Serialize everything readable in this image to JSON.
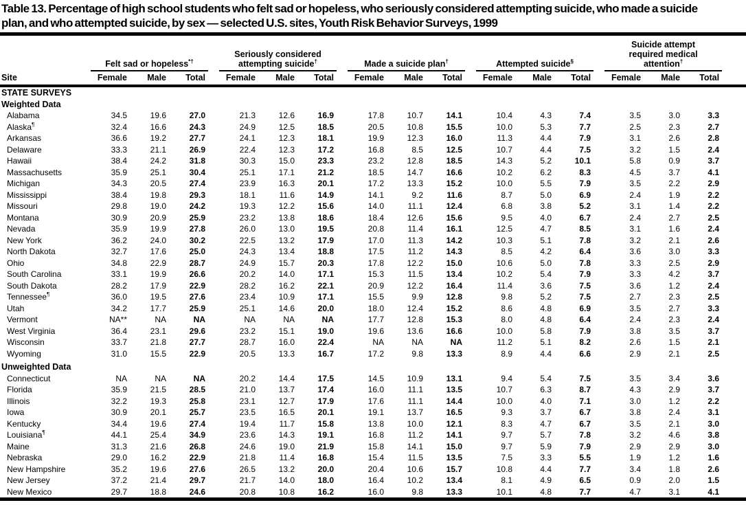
{
  "title": "Table 13. Percentage of high school students who felt sad or hopeless, who seriously considered attempting suicide, who made a suicide plan, and who attempted suicide, by sex — selected U.S. sites, Youth Risk Behavior Surveys, 1999",
  "table": {
    "site_header": "Site",
    "sub_headers": [
      "Female",
      "Male",
      "Total"
    ],
    "groups": [
      {
        "label": "Felt sad or hopeless",
        "marker": "*†"
      },
      {
        "label": "Seriously considered attempting suicide",
        "marker": "†"
      },
      {
        "label": "Made a suicide plan",
        "marker": "†"
      },
      {
        "label": "Attempted suicide",
        "marker": "§"
      },
      {
        "label": "Suicide attempt required medical attention",
        "marker": "†"
      }
    ],
    "rows": [
      {
        "type": "section",
        "label": "STATE SURVEYS"
      },
      {
        "type": "section",
        "label": "Weighted Data"
      },
      {
        "type": "data",
        "site": "Alabama",
        "marker": "",
        "values": [
          "34.5",
          "19.6",
          "27.0",
          "21.3",
          "12.6",
          "16.9",
          "17.8",
          "10.7",
          "14.1",
          "10.4",
          "4.3",
          "7.4",
          "3.5",
          "3.0",
          "3.3"
        ]
      },
      {
        "type": "data",
        "site": "Alaska",
        "marker": "¶",
        "values": [
          "32.4",
          "16.6",
          "24.3",
          "24.9",
          "12.5",
          "18.5",
          "20.5",
          "10.8",
          "15.5",
          "10.0",
          "5.3",
          "7.7",
          "2.5",
          "2.3",
          "2.7"
        ]
      },
      {
        "type": "data",
        "site": "Arkansas",
        "marker": "",
        "values": [
          "36.6",
          "19.2",
          "27.7",
          "24.1",
          "12.3",
          "18.1",
          "19.9",
          "12.3",
          "16.0",
          "11.3",
          "4.4",
          "7.9",
          "3.1",
          "2.6",
          "2.8"
        ]
      },
      {
        "type": "data",
        "site": "Delaware",
        "marker": "",
        "values": [
          "33.3",
          "21.1",
          "26.9",
          "22.4",
          "12.3",
          "17.2",
          "16.8",
          "8.5",
          "12.5",
          "10.7",
          "4.4",
          "7.5",
          "3.2",
          "1.5",
          "2.4"
        ]
      },
      {
        "type": "data",
        "site": "Hawaii",
        "marker": "",
        "values": [
          "38.4",
          "24.2",
          "31.8",
          "30.3",
          "15.0",
          "23.3",
          "23.2",
          "12.8",
          "18.5",
          "14.3",
          "5.2",
          "10.1",
          "5.8",
          "0.9",
          "3.7"
        ]
      },
      {
        "type": "data",
        "site": "Massachusetts",
        "marker": "",
        "values": [
          "35.9",
          "25.1",
          "30.4",
          "25.1",
          "17.1",
          "21.2",
          "18.5",
          "14.7",
          "16.6",
          "10.2",
          "6.2",
          "8.3",
          "4.5",
          "3.7",
          "4.1"
        ]
      },
      {
        "type": "data",
        "site": "Michigan",
        "marker": "",
        "values": [
          "34.3",
          "20.5",
          "27.4",
          "23.9",
          "16.3",
          "20.1",
          "17.2",
          "13.3",
          "15.2",
          "10.0",
          "5.5",
          "7.9",
          "3.5",
          "2.2",
          "2.9"
        ]
      },
      {
        "type": "data",
        "site": "Mississippi",
        "marker": "",
        "values": [
          "38.4",
          "19.8",
          "29.3",
          "18.1",
          "11.6",
          "14.9",
          "14.1",
          "9.2",
          "11.6",
          "8.7",
          "5.0",
          "6.9",
          "2.4",
          "1.9",
          "2.2"
        ]
      },
      {
        "type": "data",
        "site": "Missouri",
        "marker": "",
        "values": [
          "29.8",
          "19.0",
          "24.2",
          "19.3",
          "12.2",
          "15.6",
          "14.0",
          "11.1",
          "12.4",
          "6.8",
          "3.8",
          "5.2",
          "3.1",
          "1.4",
          "2.2"
        ]
      },
      {
        "type": "data",
        "site": "Montana",
        "marker": "",
        "values": [
          "30.9",
          "20.9",
          "25.9",
          "23.2",
          "13.8",
          "18.6",
          "18.4",
          "12.6",
          "15.6",
          "9.5",
          "4.0",
          "6.7",
          "2.4",
          "2.7",
          "2.5"
        ]
      },
      {
        "type": "data",
        "site": "Nevada",
        "marker": "",
        "values": [
          "35.9",
          "19.9",
          "27.8",
          "26.0",
          "13.0",
          "19.5",
          "20.8",
          "11.4",
          "16.1",
          "12.5",
          "4.7",
          "8.5",
          "3.1",
          "1.6",
          "2.4"
        ]
      },
      {
        "type": "data",
        "site": "New York",
        "marker": "",
        "values": [
          "36.2",
          "24.0",
          "30.2",
          "22.5",
          "13.2",
          "17.9",
          "17.0",
          "11.3",
          "14.2",
          "10.3",
          "5.1",
          "7.8",
          "3.2",
          "2.1",
          "2.6"
        ]
      },
      {
        "type": "data",
        "site": "North Dakota",
        "marker": "",
        "values": [
          "32.7",
          "17.6",
          "25.0",
          "24.3",
          "13.4",
          "18.8",
          "17.5",
          "11.2",
          "14.3",
          "8.5",
          "4.2",
          "6.4",
          "3.6",
          "3.0",
          "3.3"
        ]
      },
      {
        "type": "data",
        "site": "Ohio",
        "marker": "",
        "values": [
          "34.8",
          "22.9",
          "28.7",
          "24.9",
          "15.7",
          "20.3",
          "17.8",
          "12.2",
          "15.0",
          "10.6",
          "5.0",
          "7.8",
          "3.3",
          "2.5",
          "2.9"
        ]
      },
      {
        "type": "data",
        "site": "South Carolina",
        "marker": "",
        "values": [
          "33.1",
          "19.9",
          "26.6",
          "20.2",
          "14.0",
          "17.1",
          "15.3",
          "11.5",
          "13.4",
          "10.2",
          "5.4",
          "7.9",
          "3.3",
          "4.2",
          "3.7"
        ]
      },
      {
        "type": "data",
        "site": "South Dakota",
        "marker": "",
        "values": [
          "28.2",
          "17.9",
          "22.9",
          "28.2",
          "16.2",
          "22.1",
          "20.9",
          "12.2",
          "16.4",
          "11.4",
          "3.6",
          "7.5",
          "3.6",
          "1.2",
          "2.4"
        ]
      },
      {
        "type": "data",
        "site": "Tennessee",
        "marker": "¶",
        "values": [
          "36.0",
          "19.5",
          "27.6",
          "23.4",
          "10.9",
          "17.1",
          "15.5",
          "9.9",
          "12.8",
          "9.8",
          "5.2",
          "7.5",
          "2.7",
          "2.3",
          "2.5"
        ]
      },
      {
        "type": "data",
        "site": "Utah",
        "marker": "",
        "values": [
          "34.2",
          "17.7",
          "25.9",
          "25.1",
          "14.6",
          "20.0",
          "18.0",
          "12.4",
          "15.2",
          "8.6",
          "4.8",
          "6.9",
          "3.5",
          "2.7",
          "3.3"
        ]
      },
      {
        "type": "data",
        "site": "Vermont",
        "marker": "",
        "values": [
          "NA**",
          "NA",
          "NA",
          "NA",
          "NA",
          "NA",
          "17.7",
          "12.8",
          "15.3",
          "8.0",
          "4.8",
          "6.4",
          "2.4",
          "2.3",
          "2.4"
        ]
      },
      {
        "type": "data",
        "site": "West Virginia",
        "marker": "",
        "values": [
          "36.4",
          "23.1",
          "29.6",
          "23.2",
          "15.1",
          "19.0",
          "19.6",
          "13.6",
          "16.6",
          "10.0",
          "5.8",
          "7.9",
          "3.8",
          "3.5",
          "3.7"
        ]
      },
      {
        "type": "data",
        "site": "Wisconsin",
        "marker": "",
        "values": [
          "33.7",
          "21.8",
          "27.7",
          "28.7",
          "16.0",
          "22.4",
          "NA",
          "NA",
          "NA",
          "11.2",
          "5.1",
          "8.2",
          "2.6",
          "1.5",
          "2.1"
        ]
      },
      {
        "type": "data",
        "site": "Wyoming",
        "marker": "",
        "values": [
          "31.0",
          "15.5",
          "22.9",
          "20.5",
          "13.3",
          "16.7",
          "17.2",
          "9.8",
          "13.3",
          "8.9",
          "4.4",
          "6.6",
          "2.9",
          "2.1",
          "2.5"
        ]
      },
      {
        "type": "section",
        "label": "Unweighted Data",
        "gap": true
      },
      {
        "type": "data",
        "site": "Connecticut",
        "marker": "",
        "values": [
          "NA",
          "NA",
          "NA",
          "20.2",
          "14.4",
          "17.5",
          "14.5",
          "10.9",
          "13.1",
          "9.4",
          "5.4",
          "7.5",
          "3.5",
          "3.4",
          "3.6"
        ]
      },
      {
        "type": "data",
        "site": "Florida",
        "marker": "",
        "values": [
          "35.9",
          "21.5",
          "28.5",
          "21.0",
          "13.7",
          "17.4",
          "16.0",
          "11.1",
          "13.5",
          "10.7",
          "6.3",
          "8.7",
          "4.3",
          "2.9",
          "3.7"
        ]
      },
      {
        "type": "data",
        "site": "Illinois",
        "marker": "",
        "values": [
          "32.2",
          "19.3",
          "25.8",
          "23.1",
          "12.7",
          "17.9",
          "17.6",
          "11.1",
          "14.4",
          "10.0",
          "4.0",
          "7.1",
          "3.0",
          "1.2",
          "2.2"
        ]
      },
      {
        "type": "data",
        "site": "Iowa",
        "marker": "",
        "values": [
          "30.9",
          "20.1",
          "25.7",
          "23.5",
          "16.5",
          "20.1",
          "19.1",
          "13.7",
          "16.5",
          "9.3",
          "3.7",
          "6.7",
          "3.8",
          "2.4",
          "3.1"
        ]
      },
      {
        "type": "data",
        "site": "Kentucky",
        "marker": "",
        "values": [
          "34.4",
          "19.6",
          "27.4",
          "19.4",
          "11.7",
          "15.8",
          "13.8",
          "10.0",
          "12.1",
          "8.3",
          "4.7",
          "6.7",
          "3.5",
          "2.1",
          "3.0"
        ]
      },
      {
        "type": "data",
        "site": "Louisiana",
        "marker": "¶",
        "values": [
          "44.1",
          "25.4",
          "34.9",
          "23.6",
          "14.3",
          "19.1",
          "16.8",
          "11.2",
          "14.1",
          "9.7",
          "5.7",
          "7.8",
          "3.2",
          "4.6",
          "3.8"
        ]
      },
      {
        "type": "data",
        "site": "Maine",
        "marker": "",
        "values": [
          "31.3",
          "21.6",
          "26.8",
          "24.6",
          "19.0",
          "21.9",
          "15.8",
          "14.1",
          "15.0",
          "9.7",
          "5.9",
          "7.9",
          "2.9",
          "2.9",
          "3.0"
        ]
      },
      {
        "type": "data",
        "site": "Nebraska",
        "marker": "",
        "values": [
          "29.0",
          "16.2",
          "22.9",
          "21.8",
          "11.4",
          "16.8",
          "15.4",
          "11.5",
          "13.5",
          "7.5",
          "3.3",
          "5.5",
          "1.9",
          "1.2",
          "1.6"
        ]
      },
      {
        "type": "data",
        "site": "New Hampshire",
        "marker": "",
        "values": [
          "35.2",
          "19.6",
          "27.6",
          "26.5",
          "13.2",
          "20.0",
          "20.4",
          "10.6",
          "15.7",
          "10.8",
          "4.4",
          "7.7",
          "3.4",
          "1.8",
          "2.6"
        ]
      },
      {
        "type": "data",
        "site": "New Jersey",
        "marker": "",
        "values": [
          "37.2",
          "21.4",
          "29.7",
          "21.7",
          "14.0",
          "18.0",
          "16.4",
          "10.2",
          "13.4",
          "8.1",
          "4.9",
          "6.5",
          "0.9",
          "2.0",
          "1.5"
        ]
      },
      {
        "type": "data",
        "site": "New Mexico",
        "marker": "",
        "values": [
          "29.7",
          "18.8",
          "24.6",
          "20.8",
          "10.8",
          "16.2",
          "16.0",
          "9.8",
          "13.3",
          "10.1",
          "4.8",
          "7.7",
          "4.7",
          "3.1",
          "4.1"
        ]
      }
    ]
  }
}
